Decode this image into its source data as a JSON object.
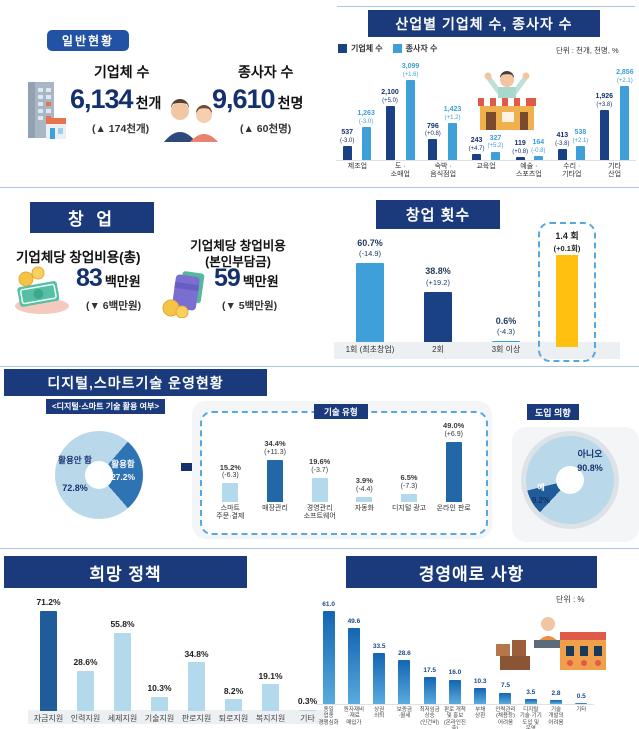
{
  "colors": {
    "banner_navy": "#1a3a7c",
    "badge_blue": "#2152a3",
    "bar_dark_navy": "#1b4185",
    "bar_light_blue": "#3f9fd8",
    "bar_pale_blue": "#b3d9ed",
    "bar_mid_blue": "#2268a8",
    "highlight_yellow": "#ffc010",
    "value_navy": "#17316d"
  },
  "general": {
    "badge": "일반현황",
    "stats": [
      {
        "icon": "building-icon",
        "label": "기업체 수",
        "value": "6,134",
        "unit": "천개",
        "change": "(▲ 174천개)"
      },
      {
        "icon": "people-icon",
        "label": "종사자 수",
        "value": "9,610",
        "unit": "천명",
        "change": "(▲ 60천명)"
      }
    ]
  },
  "startup": {
    "title": "창 업",
    "items": [
      {
        "icon": "money-icon",
        "label": "기업체당 창업비용(총)",
        "value": "83",
        "unit": "백만원",
        "change": "(▼ 6백만원)"
      },
      {
        "icon": "wallet-icon",
        "label": "기업체당 창업비용\n(본인부담금)",
        "value": "59",
        "unit": "백만원",
        "change": "(▼ 5백만원)"
      }
    ]
  },
  "digital_section_title": "디지털,스마트기술 운영현황",
  "chart_data": [
    {
      "id": "industry",
      "type": "bar",
      "title": "산업별 기업체 수, 종사자 수",
      "legend": [
        "기업체 수",
        "종사자 수"
      ],
      "unit_note": "단위 : 천개, 천명, %",
      "categories": [
        "제조업",
        "도 ·\n소매업",
        "숙박 ·\n음식점업",
        "교육업",
        "예술 ·\n스포츠업",
        "수리 ·\n기타업",
        "기타\n산업"
      ],
      "scale_max": 3099,
      "series": [
        {
          "name": "기업체 수",
          "color": "#1b4185",
          "label_color": "#17316d",
          "values": [
            537,
            2100,
            796,
            243,
            119,
            413,
            1926
          ],
          "value_labels": [
            "537",
            "2,100",
            "796",
            "243",
            "119",
            "413",
            "1,926"
          ],
          "changes": [
            "(-3.0)",
            "(+5.0)",
            "(+0.8)",
            "(+4.7)",
            "(+0.8)",
            "(-3.8)",
            "(+3.8)"
          ]
        },
        {
          "name": "종사자 수",
          "color": "#3f9fd8",
          "label_color": "#3f9fd8",
          "values": [
            1263,
            3099,
            1423,
            327,
            164,
            538,
            2856
          ],
          "value_labels": [
            "1,263",
            "3,099",
            "1,423",
            "327",
            "164",
            "538",
            "2,856"
          ],
          "changes": [
            "(-3.0)",
            "(+1.6)",
            "(+1.2)",
            "(+5.2)",
            "(-0.8)",
            "(+2.1)",
            "(+2.1)"
          ]
        }
      ]
    },
    {
      "id": "startup_count",
      "type": "bar",
      "title": "창업 횟수",
      "categories": [
        "1회 (최초창업)",
        "2회",
        "3회 이상"
      ],
      "values": [
        60.7,
        38.8,
        0.6
      ],
      "value_labels": [
        "60.7%",
        "38.8%",
        "0.6%"
      ],
      "changes": [
        "(-14.9)",
        "(+19.2)",
        "(-4.3)"
      ],
      "bar_colors": [
        "#3f9fd8",
        "#1b4185",
        "#3f9fd8"
      ],
      "value_color": "#233c60",
      "scale_max": 60.7,
      "average": {
        "label": "1.4 회",
        "change": "(+0.1회)",
        "value": 1.4,
        "color": "#ffc010"
      }
    },
    {
      "id": "tech_type",
      "type": "bar",
      "badge": "기술 유형",
      "categories": [
        "스마트\n주문·결제",
        "매장관리",
        "경영관리\n소프트웨어",
        "자동화",
        "디지털 광고",
        "온라인 판로"
      ],
      "values": [
        15.2,
        34.4,
        19.6,
        3.9,
        6.5,
        49.0
      ],
      "value_labels": [
        "15.2%",
        "34.4%",
        "19.6%",
        "3.9%",
        "6.5%",
        "49.0%"
      ],
      "changes": [
        "(-6.3)",
        "(+11.3)",
        "(-3.7)",
        "(-4.4)",
        "(-7.3)",
        "(+6.9)"
      ],
      "bar_colors": [
        "#b3d9ed",
        "#2268a8",
        "#b3d9ed",
        "#b3d9ed",
        "#b3d9ed",
        "#2268a8"
      ],
      "value_color": "#3a3a3a",
      "scale_max": 49.0
    },
    {
      "id": "usage_pie",
      "type": "pie",
      "badge": "<디지털·스마트 기술 활용 여부>",
      "dark_start_deg": 41,
      "slices": [
        {
          "label": "활용안 함",
          "pct": 72.8,
          "pct_label": "72.8%",
          "color": "#b9d8ea"
        },
        {
          "label": "활용함",
          "pct": 27.2,
          "pct_label": "27.2%",
          "color": "#2e74b5"
        }
      ]
    },
    {
      "id": "intent_pie",
      "type": "pie",
      "badge": "도입 의향",
      "dark_start_deg": 223,
      "slices": [
        {
          "label": "아니오",
          "pct": 90.8,
          "pct_label": "90.8%",
          "color": "#b9d8ea"
        },
        {
          "label": "예",
          "pct": 9.2,
          "pct_label": "9.2%",
          "color": "#1f5c99"
        }
      ]
    },
    {
      "id": "policy",
      "type": "bar",
      "title": "희망 정책",
      "categories": [
        "자금지원",
        "인력지원",
        "세제지원",
        "기술지원",
        "판로지원",
        "퇴로지원",
        "복지지원",
        "기타"
      ],
      "values": [
        71.2,
        28.6,
        55.8,
        10.3,
        34.8,
        8.2,
        19.1,
        0.3
      ],
      "value_labels": [
        "71.2%",
        "28.6%",
        "55.8%",
        "10.3%",
        "34.8%",
        "8.2%",
        "19.1%",
        "0.3%"
      ],
      "bar_colors": [
        "#1f5c99",
        "#b3d9ed",
        "#b3d9ed",
        "#b3d9ed",
        "#b3d9ed",
        "#b3d9ed",
        "#b3d9ed",
        "#b3d9ed"
      ],
      "value_color": "#1d1d1d",
      "scale_max": 71.2
    },
    {
      "id": "difficulty",
      "type": "bar",
      "title": "경영애로 사항",
      "unit_note": "단위 : %",
      "categories": [
        "동일\n업종\n경쟁심화",
        "원자재비\n·재료\n매입가",
        "상권\n쇠퇴",
        "보증금\n·월세",
        "최저임금\n상승\n(인건비)",
        "판로 개척\n및 홍보\n(온라인진\n출)",
        "부채\n상환",
        "인력관리\n(채용등)\n어려움",
        "디지털\n기술·기기\n도입 및\n운영",
        "기술\n개발의\n어려움",
        "기타"
      ],
      "values": [
        61.0,
        49.6,
        33.5,
        28.6,
        17.5,
        16.0,
        10.3,
        7.5,
        3.5,
        2.8,
        0.5
      ],
      "value_labels": [
        "61.0",
        "49.6",
        "33.5",
        "28.6",
        "17.5",
        "16.0",
        "10.3",
        "7.5",
        "3.5",
        "2.8",
        "0.5"
      ],
      "bar_gradient": [
        "#1365b2",
        "#5aabde"
      ],
      "value_color": "#1a4a8c",
      "scale_max": 61.0
    }
  ]
}
